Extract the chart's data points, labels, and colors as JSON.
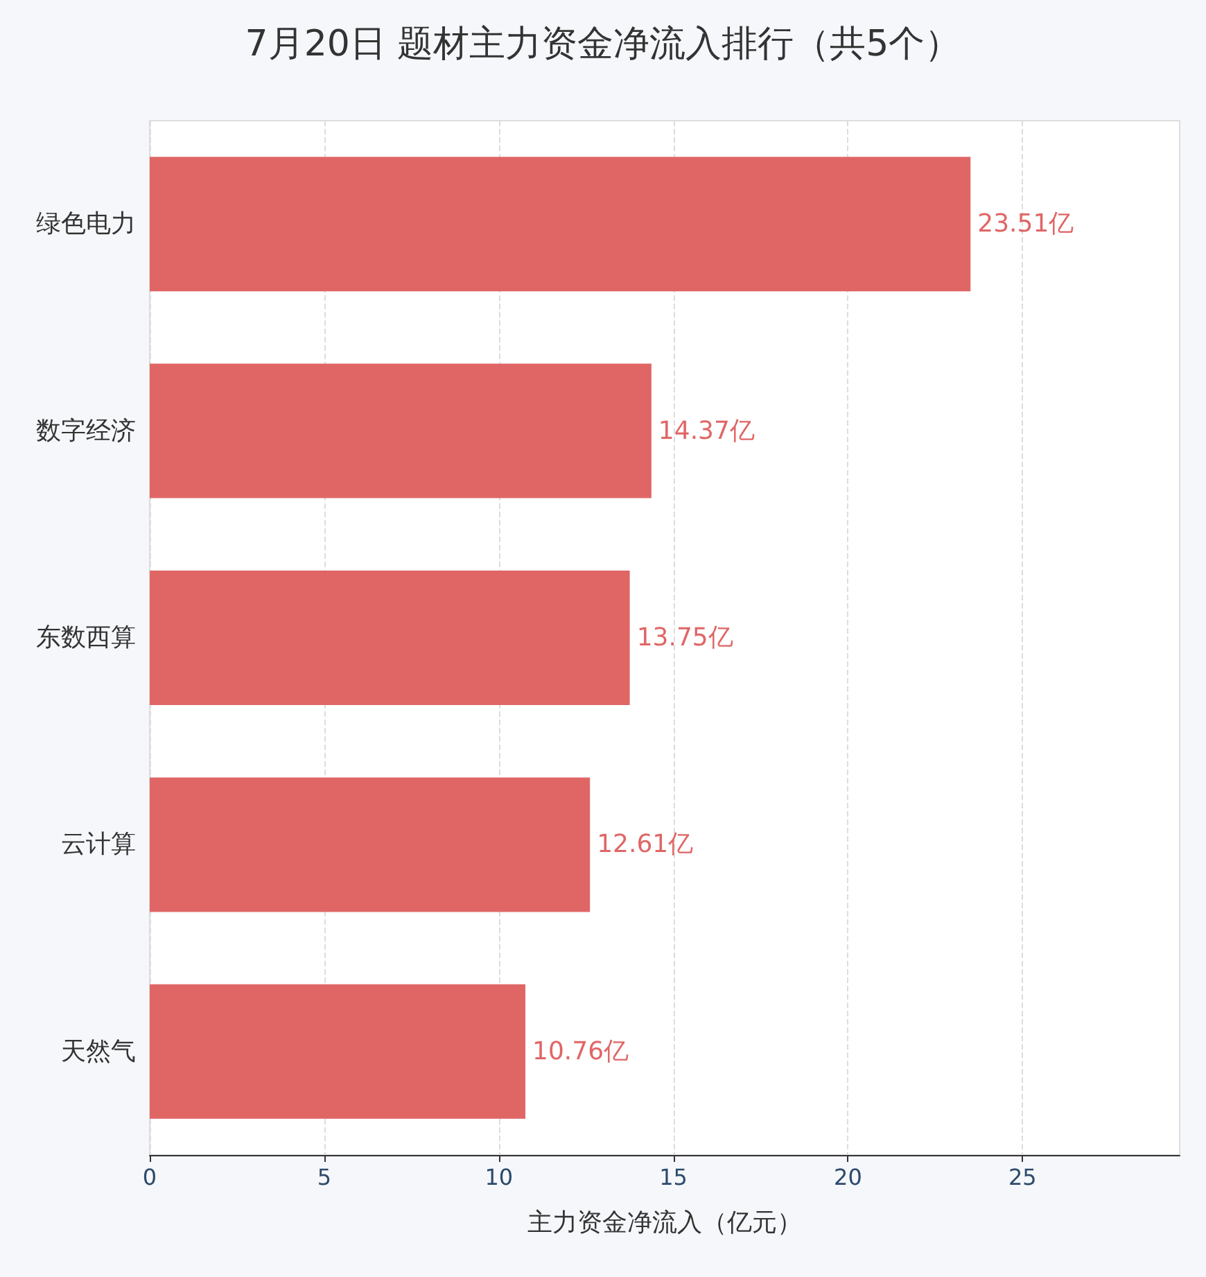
{
  "chart_data": {
    "type": "bar",
    "orientation": "horizontal",
    "title": "7月20日 题材主力资金净流入排行（共5个）",
    "xlabel": "主力资金净流入（亿元）",
    "categories": [
      "绿色电力",
      "数字经济",
      "东数西算",
      "云计算",
      "天然气"
    ],
    "series": [
      {
        "color": "#e06666",
        "values": [
          23.51,
          14.37,
          13.75,
          12.61,
          10.76
        ],
        "value_labels": [
          "23.51亿",
          "14.37亿",
          "13.75亿",
          "12.61亿",
          "10.76亿"
        ]
      }
    ],
    "xlim": [
      0,
      29.5
    ],
    "xticks": [
      0,
      5,
      10,
      15,
      20,
      25
    ],
    "grid": "x"
  }
}
